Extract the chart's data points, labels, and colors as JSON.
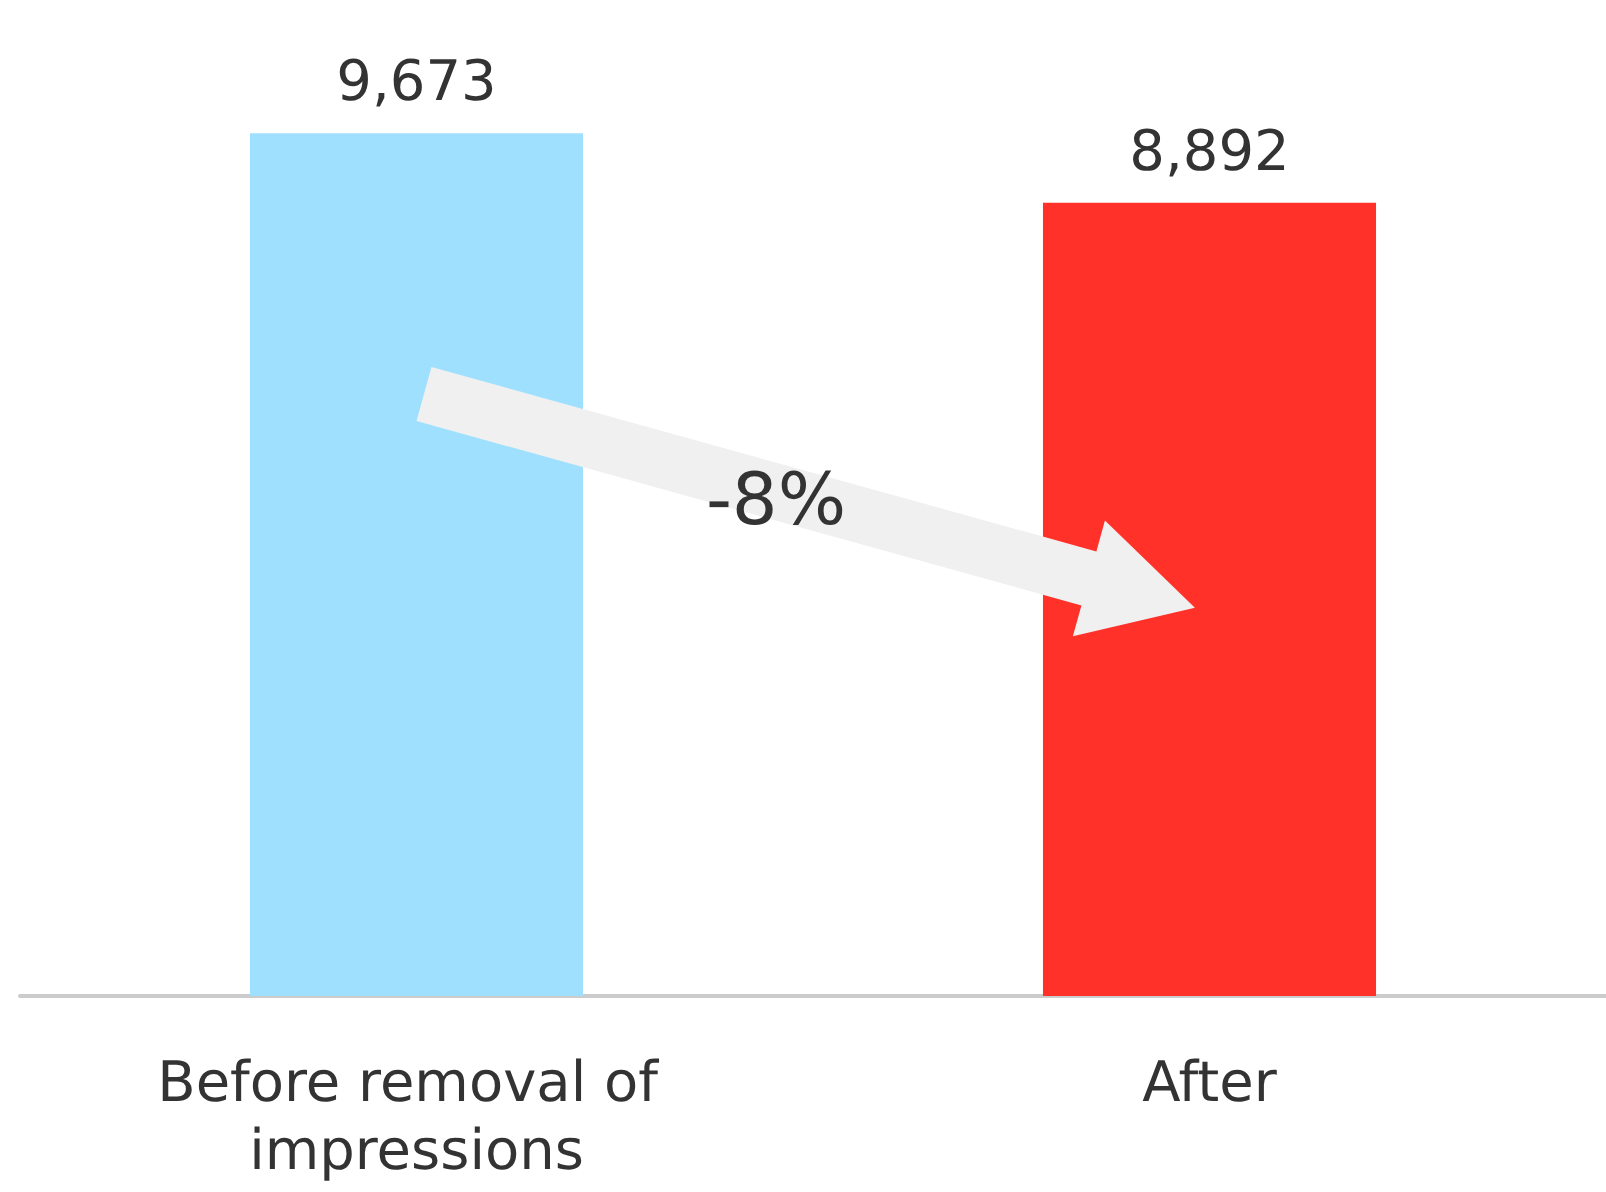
{
  "chart_data": {
    "type": "bar",
    "categories": [
      "Before removal of impressions",
      "After"
    ],
    "values": [
      9673,
      8892
    ],
    "colors": [
      "#a0e0ff",
      "#ff3128"
    ],
    "tick_labels": "x",
    "grid": false,
    "data_labels": true,
    "value_labels": [
      "9,673",
      "8,892"
    ],
    "annotations": [
      "-8%"
    ]
  }
}
